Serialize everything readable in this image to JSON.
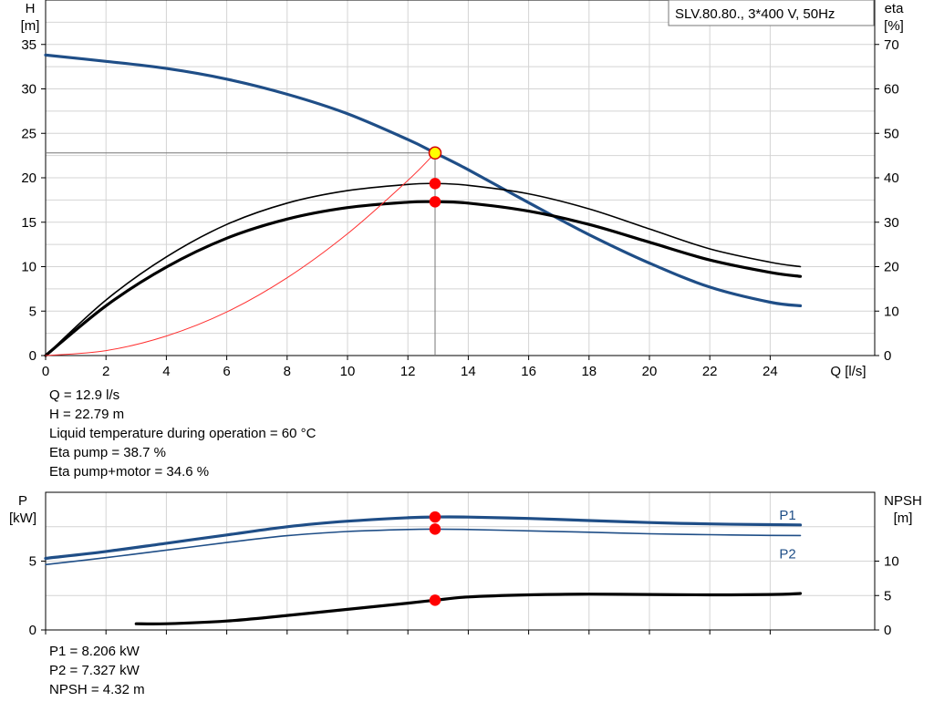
{
  "chart_data": [
    {
      "type": "line",
      "title": "SLV.80.80., 3*400 V, 50Hz",
      "xlabel": "Q [l/s]",
      "ylabel_left": [
        "H",
        "[m]"
      ],
      "ylabel_right": [
        "eta",
        "[%]"
      ],
      "xlim": [
        0,
        26
      ],
      "ylim_left": [
        0,
        40
      ],
      "ylim_right": [
        0,
        80
      ],
      "x_ticks": [
        0,
        2,
        4,
        6,
        8,
        10,
        12,
        14,
        16,
        18,
        20,
        22,
        24
      ],
      "y_ticks_left": [
        0,
        5,
        10,
        15,
        20,
        25,
        30,
        35
      ],
      "y_ticks_right": [
        0,
        10,
        20,
        30,
        40,
        50,
        60,
        70
      ],
      "grid": true,
      "series": [
        {
          "color": "#1f4e87",
          "axis": "left",
          "width": 3.2,
          "x": [
            0,
            2,
            4,
            6,
            8,
            10,
            12,
            12.9,
            14,
            16,
            18,
            20,
            22,
            24,
            25
          ],
          "y": [
            33.8,
            33.1,
            32.3,
            31.1,
            29.4,
            27.2,
            24.3,
            22.79,
            20.9,
            17.2,
            13.6,
            10.4,
            7.7,
            6.0,
            5.6
          ]
        },
        {
          "color": "#000000",
          "axis": "right",
          "width": 1.6,
          "x": [
            0,
            2,
            4,
            6,
            8,
            10,
            12,
            12.9,
            14,
            16,
            18,
            20,
            22,
            24,
            25
          ],
          "y": [
            0,
            12.5,
            22.2,
            29.5,
            34.3,
            37.1,
            38.5,
            38.7,
            38.3,
            36.4,
            33.0,
            28.5,
            24.0,
            21.0,
            20.0
          ]
        },
        {
          "color": "#000000",
          "axis": "right",
          "width": 3.2,
          "x": [
            0,
            2,
            4,
            6,
            8,
            10,
            12,
            12.9,
            14,
            16,
            18,
            20,
            22,
            24,
            25
          ],
          "y": [
            0,
            11.2,
            19.9,
            26.4,
            30.7,
            33.3,
            34.5,
            34.6,
            34.3,
            32.5,
            29.5,
            25.5,
            21.5,
            18.7,
            17.8
          ]
        },
        {
          "color": "#ff3030",
          "axis": "left",
          "width": 1,
          "x": [
            0,
            2,
            4,
            6,
            8,
            10,
            12,
            12.9
          ],
          "y": [
            0,
            0.55,
            2.2,
            4.9,
            8.75,
            13.7,
            19.7,
            22.79
          ]
        }
      ],
      "operating_point": {
        "x": 12.9,
        "y": 22.79
      },
      "markers": [
        {
          "x": 12.9,
          "y": 22.79,
          "axis": "left",
          "fill": "#ffff00",
          "stroke": "#d40000",
          "r": 6.5
        },
        {
          "x": 12.9,
          "y": 38.7,
          "axis": "right",
          "fill": "#ff0000",
          "stroke": "#ff0000",
          "r": 5.5
        },
        {
          "x": 12.9,
          "y": 34.6,
          "axis": "right",
          "fill": "#ff0000",
          "stroke": "#ff0000",
          "r": 5.5
        }
      ]
    },
    {
      "type": "line",
      "ylabel_left": [
        "P",
        "[kW]"
      ],
      "ylabel_right": [
        "NPSH",
        "[m]"
      ],
      "xlim": [
        0,
        26
      ],
      "ylim_left": [
        0,
        10
      ],
      "ylim_right": [
        0,
        20
      ],
      "x_ticks": [
        0,
        2,
        4,
        6,
        8,
        10,
        12,
        14,
        16,
        18,
        20,
        22,
        24
      ],
      "y_ticks_left": [
        0,
        5
      ],
      "y_ticks_right": [
        0,
        5,
        10
      ],
      "grid": true,
      "series": [
        {
          "name": "P1",
          "color": "#1f4e87",
          "axis": "left",
          "width": 3.2,
          "x": [
            0,
            2,
            4,
            6,
            8,
            10,
            12,
            12.9,
            14,
            16,
            18,
            20,
            22,
            24,
            25
          ],
          "y": [
            5.2,
            5.7,
            6.3,
            6.9,
            7.5,
            7.9,
            8.15,
            8.206,
            8.2,
            8.1,
            7.95,
            7.8,
            7.7,
            7.65,
            7.63
          ]
        },
        {
          "name": "P2",
          "color": "#1f4e87",
          "axis": "left",
          "width": 1.6,
          "x": [
            0,
            2,
            4,
            6,
            8,
            10,
            12,
            12.9,
            14,
            16,
            18,
            20,
            22,
            24,
            25
          ],
          "y": [
            4.75,
            5.25,
            5.8,
            6.35,
            6.85,
            7.15,
            7.3,
            7.327,
            7.3,
            7.2,
            7.1,
            6.99,
            6.92,
            6.87,
            6.86
          ]
        },
        {
          "color": "#000000",
          "axis": "right",
          "width": 3.2,
          "x": [
            3,
            4,
            6,
            8,
            10,
            12,
            12.9,
            14,
            16,
            18,
            20,
            22,
            24,
            25
          ],
          "y": [
            0.9,
            0.9,
            1.3,
            2.1,
            3.0,
            3.9,
            4.32,
            4.8,
            5.1,
            5.2,
            5.15,
            5.1,
            5.15,
            5.3
          ]
        }
      ],
      "markers": [
        {
          "x": 12.9,
          "y": 8.206,
          "axis": "left",
          "fill": "#ff0000",
          "stroke": "#ff0000",
          "r": 5.5
        },
        {
          "x": 12.9,
          "y": 7.327,
          "axis": "left",
          "fill": "#ff0000",
          "stroke": "#ff0000",
          "r": 5.5
        },
        {
          "x": 12.9,
          "y": 4.32,
          "axis": "right",
          "fill": "#ff0000",
          "stroke": "#ff0000",
          "r": 5.5
        }
      ]
    }
  ],
  "readouts_top": [
    "Q = 12.9 l/s",
    "H = 22.79 m",
    "Liquid temperature during operation = 60 °C",
    "Eta pump = 38.7 %",
    "Eta pump+motor = 34.6 %"
  ],
  "readouts_bottom": [
    "P1 = 8.206 kW",
    "P2 = 7.327 kW",
    "NPSH = 4.32 m"
  ]
}
